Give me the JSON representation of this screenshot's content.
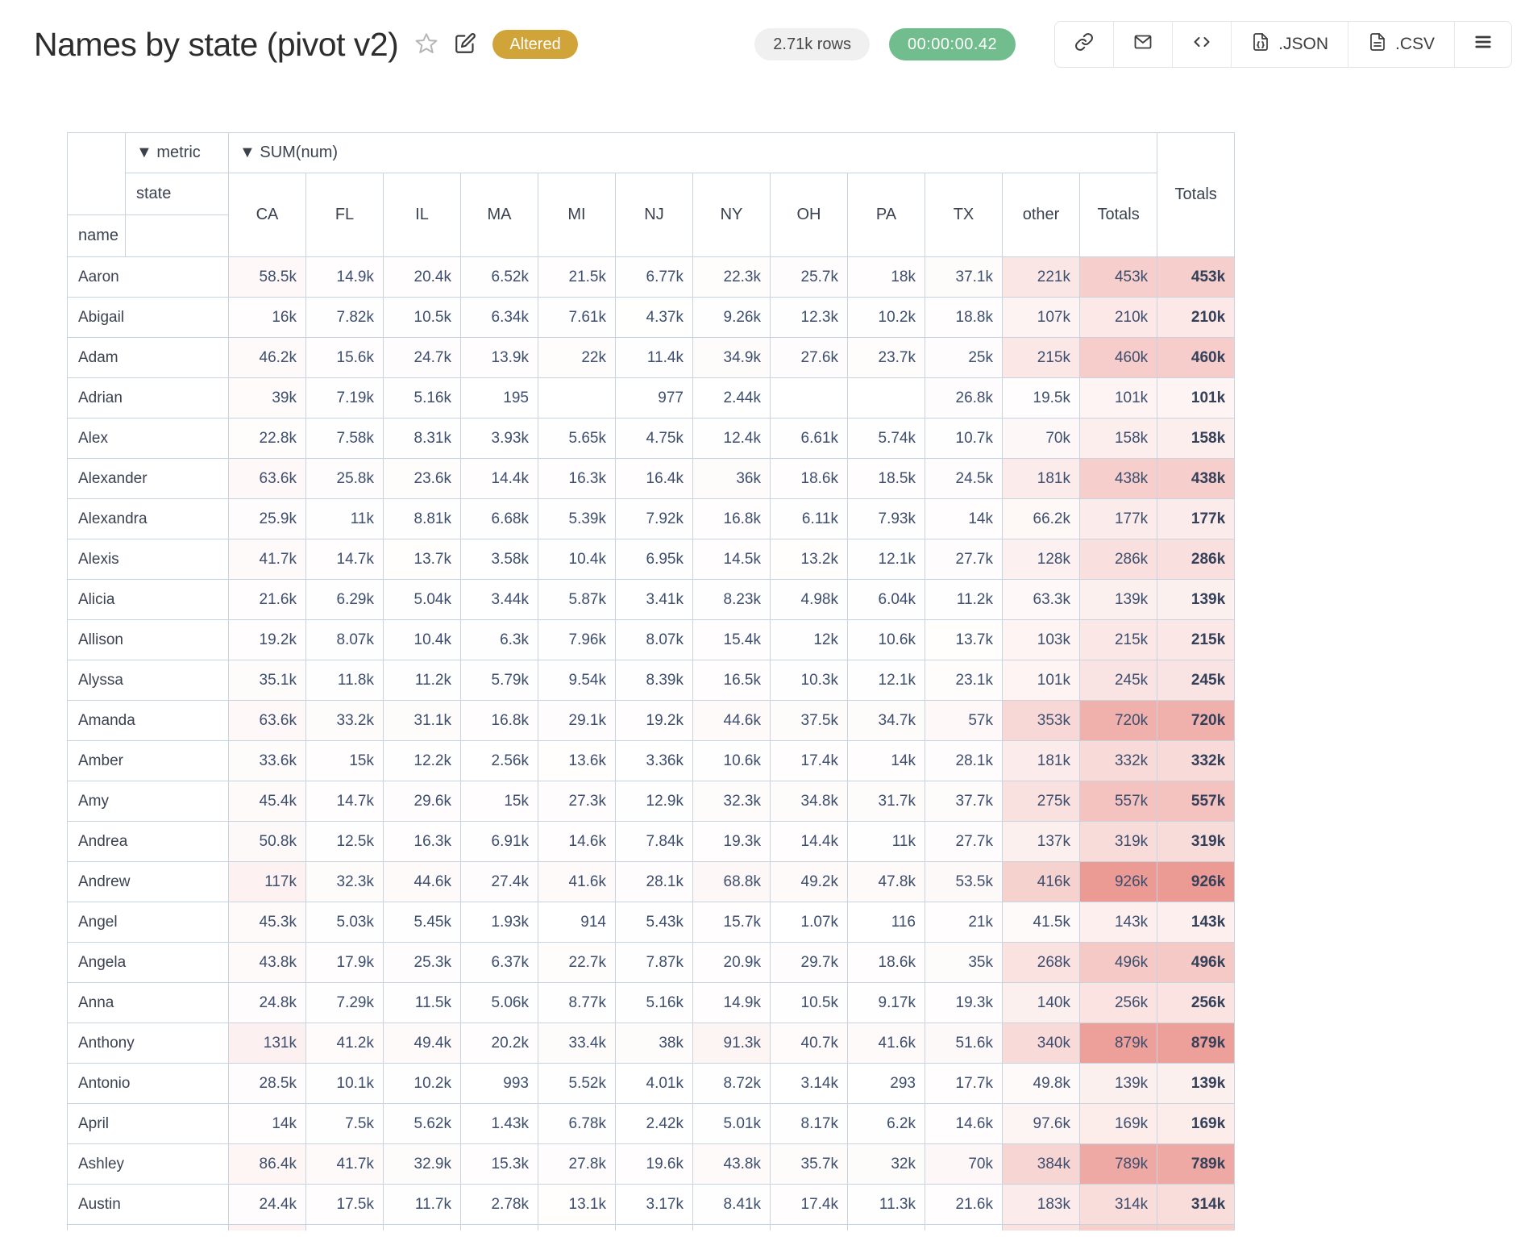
{
  "header": {
    "title": "Names by state (pivot v2)",
    "altered_badge": "Altered",
    "rows_badge": "2.71k rows",
    "timer_badge": "00:00:00.42",
    "buttons": {
      "json_label": ".JSON",
      "csv_label": ".CSV"
    }
  },
  "colors": {
    "altered_badge_bg": "#d0a438",
    "timer_badge_bg": "#72bd8d",
    "table_border": "#c8d3e0",
    "number_text": "#3d4e6e",
    "heatmap_max": "#ec9a94"
  },
  "pivot": {
    "metric_dropdown": "▼ metric",
    "sum_dropdown": "▼ SUM(num)",
    "col_dim_label": "state",
    "row_dim_label": "name",
    "grand_total_label": "Totals",
    "columns": [
      "CA",
      "FL",
      "IL",
      "MA",
      "MI",
      "NJ",
      "NY",
      "OH",
      "PA",
      "TX",
      "other",
      "Totals"
    ],
    "rows": [
      {
        "name": "Aaron",
        "values": [
          "58.5k",
          "14.9k",
          "20.4k",
          "6.52k",
          "21.5k",
          "6.77k",
          "22.3k",
          "25.7k",
          "18k",
          "37.1k",
          "221k",
          "453k"
        ],
        "total": "453k"
      },
      {
        "name": "Abigail",
        "values": [
          "16k",
          "7.82k",
          "10.5k",
          "6.34k",
          "7.61k",
          "4.37k",
          "9.26k",
          "12.3k",
          "10.2k",
          "18.8k",
          "107k",
          "210k"
        ],
        "total": "210k"
      },
      {
        "name": "Adam",
        "values": [
          "46.2k",
          "15.6k",
          "24.7k",
          "13.9k",
          "22k",
          "11.4k",
          "34.9k",
          "27.6k",
          "23.7k",
          "25k",
          "215k",
          "460k"
        ],
        "total": "460k"
      },
      {
        "name": "Adrian",
        "values": [
          "39k",
          "7.19k",
          "5.16k",
          "195",
          "",
          "977",
          "2.44k",
          "",
          "",
          "26.8k",
          "19.5k",
          "101k"
        ],
        "total": "101k"
      },
      {
        "name": "Alex",
        "values": [
          "22.8k",
          "7.58k",
          "8.31k",
          "3.93k",
          "5.65k",
          "4.75k",
          "12.4k",
          "6.61k",
          "5.74k",
          "10.7k",
          "70k",
          "158k"
        ],
        "total": "158k"
      },
      {
        "name": "Alexander",
        "values": [
          "63.6k",
          "25.8k",
          "23.6k",
          "14.4k",
          "16.3k",
          "16.4k",
          "36k",
          "18.6k",
          "18.5k",
          "24.5k",
          "181k",
          "438k"
        ],
        "total": "438k"
      },
      {
        "name": "Alexandra",
        "values": [
          "25.9k",
          "11k",
          "8.81k",
          "6.68k",
          "5.39k",
          "7.92k",
          "16.8k",
          "6.11k",
          "7.93k",
          "14k",
          "66.2k",
          "177k"
        ],
        "total": "177k"
      },
      {
        "name": "Alexis",
        "values": [
          "41.7k",
          "14.7k",
          "13.7k",
          "3.58k",
          "10.4k",
          "6.95k",
          "14.5k",
          "13.2k",
          "12.1k",
          "27.7k",
          "128k",
          "286k"
        ],
        "total": "286k"
      },
      {
        "name": "Alicia",
        "values": [
          "21.6k",
          "6.29k",
          "5.04k",
          "3.44k",
          "5.87k",
          "3.41k",
          "8.23k",
          "4.98k",
          "6.04k",
          "11.2k",
          "63.3k",
          "139k"
        ],
        "total": "139k"
      },
      {
        "name": "Allison",
        "values": [
          "19.2k",
          "8.07k",
          "10.4k",
          "6.3k",
          "7.96k",
          "8.07k",
          "15.4k",
          "12k",
          "10.6k",
          "13.7k",
          "103k",
          "215k"
        ],
        "total": "215k"
      },
      {
        "name": "Alyssa",
        "values": [
          "35.1k",
          "11.8k",
          "11.2k",
          "5.79k",
          "9.54k",
          "8.39k",
          "16.5k",
          "10.3k",
          "12.1k",
          "23.1k",
          "101k",
          "245k"
        ],
        "total": "245k"
      },
      {
        "name": "Amanda",
        "values": [
          "63.6k",
          "33.2k",
          "31.1k",
          "16.8k",
          "29.1k",
          "19.2k",
          "44.6k",
          "37.5k",
          "34.7k",
          "57k",
          "353k",
          "720k"
        ],
        "total": "720k"
      },
      {
        "name": "Amber",
        "values": [
          "33.6k",
          "15k",
          "12.2k",
          "2.56k",
          "13.6k",
          "3.36k",
          "10.6k",
          "17.4k",
          "14k",
          "28.1k",
          "181k",
          "332k"
        ],
        "total": "332k"
      },
      {
        "name": "Amy",
        "values": [
          "45.4k",
          "14.7k",
          "29.6k",
          "15k",
          "27.3k",
          "12.9k",
          "32.3k",
          "34.8k",
          "31.7k",
          "37.7k",
          "275k",
          "557k"
        ],
        "total": "557k"
      },
      {
        "name": "Andrea",
        "values": [
          "50.8k",
          "12.5k",
          "16.3k",
          "6.91k",
          "14.6k",
          "7.84k",
          "19.3k",
          "14.4k",
          "11k",
          "27.7k",
          "137k",
          "319k"
        ],
        "total": "319k"
      },
      {
        "name": "Andrew",
        "values": [
          "117k",
          "32.3k",
          "44.6k",
          "27.4k",
          "41.6k",
          "28.1k",
          "68.8k",
          "49.2k",
          "47.8k",
          "53.5k",
          "416k",
          "926k"
        ],
        "total": "926k"
      },
      {
        "name": "Angel",
        "values": [
          "45.3k",
          "5.03k",
          "5.45k",
          "1.93k",
          "914",
          "5.43k",
          "15.7k",
          "1.07k",
          "116",
          "21k",
          "41.5k",
          "143k"
        ],
        "total": "143k"
      },
      {
        "name": "Angela",
        "values": [
          "43.8k",
          "17.9k",
          "25.3k",
          "6.37k",
          "22.7k",
          "7.87k",
          "20.9k",
          "29.7k",
          "18.6k",
          "35k",
          "268k",
          "496k"
        ],
        "total": "496k"
      },
      {
        "name": "Anna",
        "values": [
          "24.8k",
          "7.29k",
          "11.5k",
          "5.06k",
          "8.77k",
          "5.16k",
          "14.9k",
          "10.5k",
          "9.17k",
          "19.3k",
          "140k",
          "256k"
        ],
        "total": "256k"
      },
      {
        "name": "Anthony",
        "values": [
          "131k",
          "41.2k",
          "49.4k",
          "20.2k",
          "33.4k",
          "38k",
          "91.3k",
          "40.7k",
          "41.6k",
          "51.6k",
          "340k",
          "879k"
        ],
        "total": "879k"
      },
      {
        "name": "Antonio",
        "values": [
          "28.5k",
          "10.1k",
          "10.2k",
          "993",
          "5.52k",
          "4.01k",
          "8.72k",
          "3.14k",
          "293",
          "17.7k",
          "49.8k",
          "139k"
        ],
        "total": "139k"
      },
      {
        "name": "April",
        "values": [
          "14k",
          "7.5k",
          "5.62k",
          "1.43k",
          "6.78k",
          "2.42k",
          "5.01k",
          "8.17k",
          "6.2k",
          "14.6k",
          "97.6k",
          "169k"
        ],
        "total": "169k"
      },
      {
        "name": "Ashley",
        "values": [
          "86.4k",
          "41.7k",
          "32.9k",
          "15.3k",
          "27.8k",
          "19.6k",
          "43.8k",
          "35.7k",
          "32k",
          "70k",
          "384k",
          "789k"
        ],
        "total": "789k"
      },
      {
        "name": "Austin",
        "values": [
          "24.4k",
          "17.5k",
          "11.7k",
          "2.78k",
          "13.1k",
          "3.17k",
          "8.41k",
          "17.4k",
          "11.3k",
          "21.6k",
          "183k",
          "314k"
        ],
        "total": "314k"
      }
    ]
  },
  "heatmap": {
    "max_value": 926000,
    "next_row_tints": [
      "",
      "#fdf3f2",
      "",
      "",
      "",
      "",
      "",
      "",
      "",
      "",
      "",
      "#fae3e0",
      "#f7d0cc",
      "#f7d0cc"
    ]
  }
}
